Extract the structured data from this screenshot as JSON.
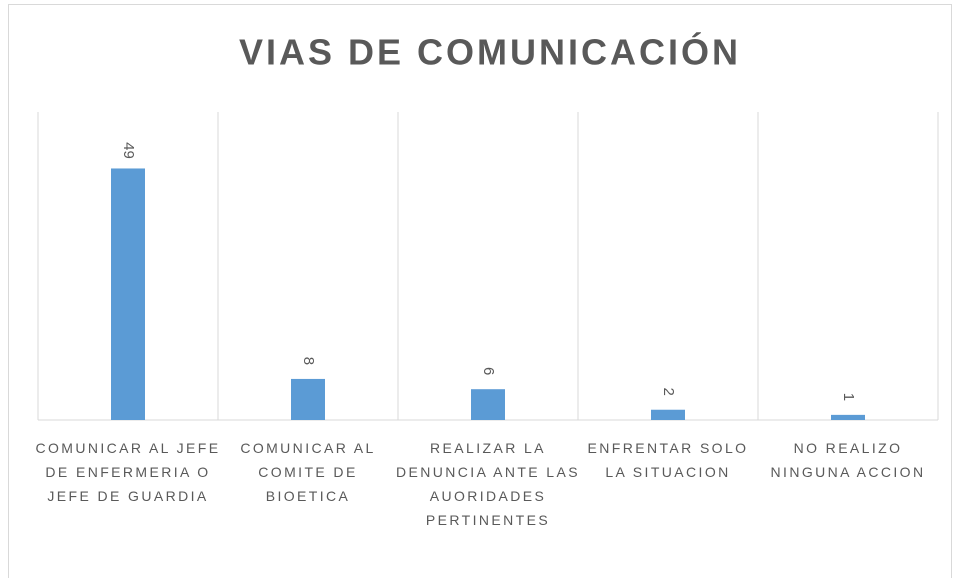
{
  "chart_data": {
    "type": "bar",
    "title": "VIAS DE COMUNICACIÓN",
    "categories": [
      "COMUNICAR AL JEFE DE ENFERMERIA O JEFE DE GUARDIA",
      "COMUNICAR AL COMITE DE BIOETICA",
      "REALIZAR LA DENUNCIA ANTE LAS AUORIDADES PERTINENTES",
      "ENFRENTAR SOLO LA SITUACION",
      "NO REALIZO NINGUNA ACCION"
    ],
    "values": [
      49,
      8,
      6,
      2,
      1
    ],
    "color": "#5b9bd5",
    "ylim": [
      0,
      60
    ],
    "grid": true
  }
}
